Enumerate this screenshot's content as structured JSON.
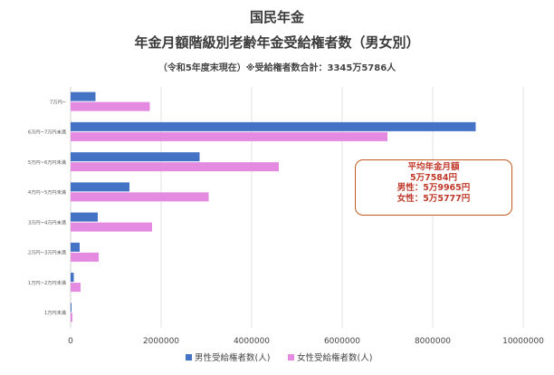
{
  "header": {
    "title": "国民年金",
    "subtitle": "年金月額階級別老齢年金受給権者数（男女別）",
    "note": "（令和5年度末現在）※受給権者数合計：3345万5786人"
  },
  "info_box": {
    "heading": "平均年金月額",
    "overall": "5万7584円",
    "male": "男性：5万9965円",
    "female": "女性：5万5777円"
  },
  "colors": {
    "male": "#4472c4",
    "female": "#e48ae0",
    "box_border": "#c05a1e",
    "box_text": "#c0392b"
  },
  "chart_data": {
    "type": "bar",
    "orientation": "horizontal",
    "categories": [
      "7万円~",
      "6万円~7万円未満",
      "5万円~6万円未満",
      "4万円~5万円未満",
      "3万円~4万円未満",
      "2万円~3万円未満",
      "1万円~2万円未満",
      "1万円未満"
    ],
    "series": [
      {
        "name": "男性受給権者数(人)",
        "values": [
          550000,
          8950000,
          2850000,
          1300000,
          600000,
          200000,
          70000,
          20000
        ]
      },
      {
        "name": "女性受給権者数(人)",
        "values": [
          1750000,
          7000000,
          4600000,
          3050000,
          1800000,
          620000,
          220000,
          40000
        ]
      }
    ],
    "xlim": [
      0,
      10000000
    ],
    "xticks": [
      "0",
      "2000000",
      "4000000",
      "6000000",
      "8000000",
      "10000000"
    ],
    "legend": "bottom"
  }
}
